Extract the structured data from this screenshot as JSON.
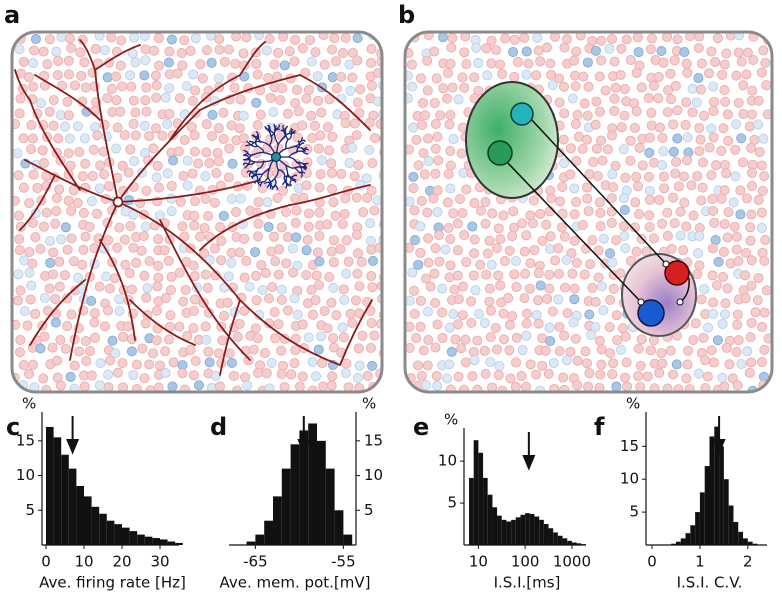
{
  "diagrams": [
    {
      "label": "a"
    },
    {
      "label": "b"
    }
  ],
  "chart_data": [
    {
      "type": "histogram",
      "label": "c",
      "color": "#111111",
      "bins": [
        0,
        2,
        4,
        6,
        8,
        10,
        12,
        14,
        16,
        18,
        20,
        22,
        24,
        26,
        28,
        30,
        32,
        34,
        36
      ],
      "values": [
        17,
        15.5,
        13,
        11,
        8.5,
        7,
        5.5,
        4.5,
        3.5,
        3,
        2.5,
        2,
        1.5,
        1.2,
        1,
        0.8,
        0.5,
        0.3
      ],
      "xlim": [
        0,
        35
      ],
      "xticks": [
        0,
        10,
        20,
        30
      ],
      "ylim": [
        0,
        18
      ],
      "yticks": [
        5,
        10,
        15
      ],
      "y_label": "%",
      "x_label": "Ave. firing rate  [Hz]",
      "arrow": 7
    },
    {
      "type": "histogram",
      "label": "d",
      "color": "#111111",
      "bins": [
        -66,
        -65,
        -64,
        -63,
        -62,
        -61,
        -60,
        -59,
        -58,
        -57,
        -56,
        -55,
        -54
      ],
      "values": [
        0.5,
        1.5,
        3.5,
        7,
        11,
        14.5,
        16.5,
        17.5,
        15,
        11,
        5,
        1.5
      ],
      "xlim": [
        -68,
        -53
      ],
      "xticks": [
        -65,
        -55
      ],
      "ylim": [
        0,
        18
      ],
      "yticks": [
        5,
        10,
        15
      ],
      "y_axis_side": "right",
      "y_label": "%",
      "x_label": "Ave. mem. pot.[mV]",
      "arrow": -59.5
    },
    {
      "type": "histogram",
      "label": "e",
      "color": "#111111",
      "xlog": true,
      "bins": [
        6.31,
        7.94,
        10,
        12.6,
        15.8,
        20,
        25.1,
        31.6,
        39.8,
        50.1,
        63.1,
        79.4,
        100,
        126,
        158,
        200,
        251,
        316,
        398,
        501,
        631,
        794,
        1000,
        1260,
        1580,
        2000
      ],
      "values": [
        8,
        12.5,
        11,
        8,
        6,
        4.5,
        3.5,
        3,
        2.8,
        3,
        3.3,
        3.6,
        3.8,
        3.7,
        3.4,
        3,
        2.5,
        2,
        1.5,
        1.1,
        0.8,
        0.5,
        0.3,
        0.2,
        0.1
      ],
      "xlim": [
        6,
        2000
      ],
      "xticks": [
        10,
        100,
        1000
      ],
      "ylim": [
        0,
        13
      ],
      "yticks": [
        5,
        10
      ],
      "y_label": "%",
      "x_label": "I.S.I.[ms]",
      "arrow": 120
    },
    {
      "type": "histogram",
      "label": "f",
      "color": "#111111",
      "bins": [
        0.4,
        0.5,
        0.6,
        0.7,
        0.8,
        0.9,
        1.0,
        1.1,
        1.2,
        1.3,
        1.4,
        1.5,
        1.6,
        1.7,
        1.8,
        1.9,
        2.0,
        2.1,
        2.2
      ],
      "values": [
        0.2,
        0.5,
        1,
        1.8,
        3,
        5,
        8,
        12,
        16.5,
        18,
        15,
        10,
        6,
        3.5,
        2,
        1,
        0.5,
        0.2
      ],
      "xlim": [
        0,
        2.4
      ],
      "xticks": [
        0,
        1,
        2
      ],
      "ylim": [
        0,
        19
      ],
      "yticks": [
        5,
        10,
        15
      ],
      "y_label": "%",
      "x_label": "I.S.I. C.V.",
      "arrow": 1.4
    }
  ]
}
